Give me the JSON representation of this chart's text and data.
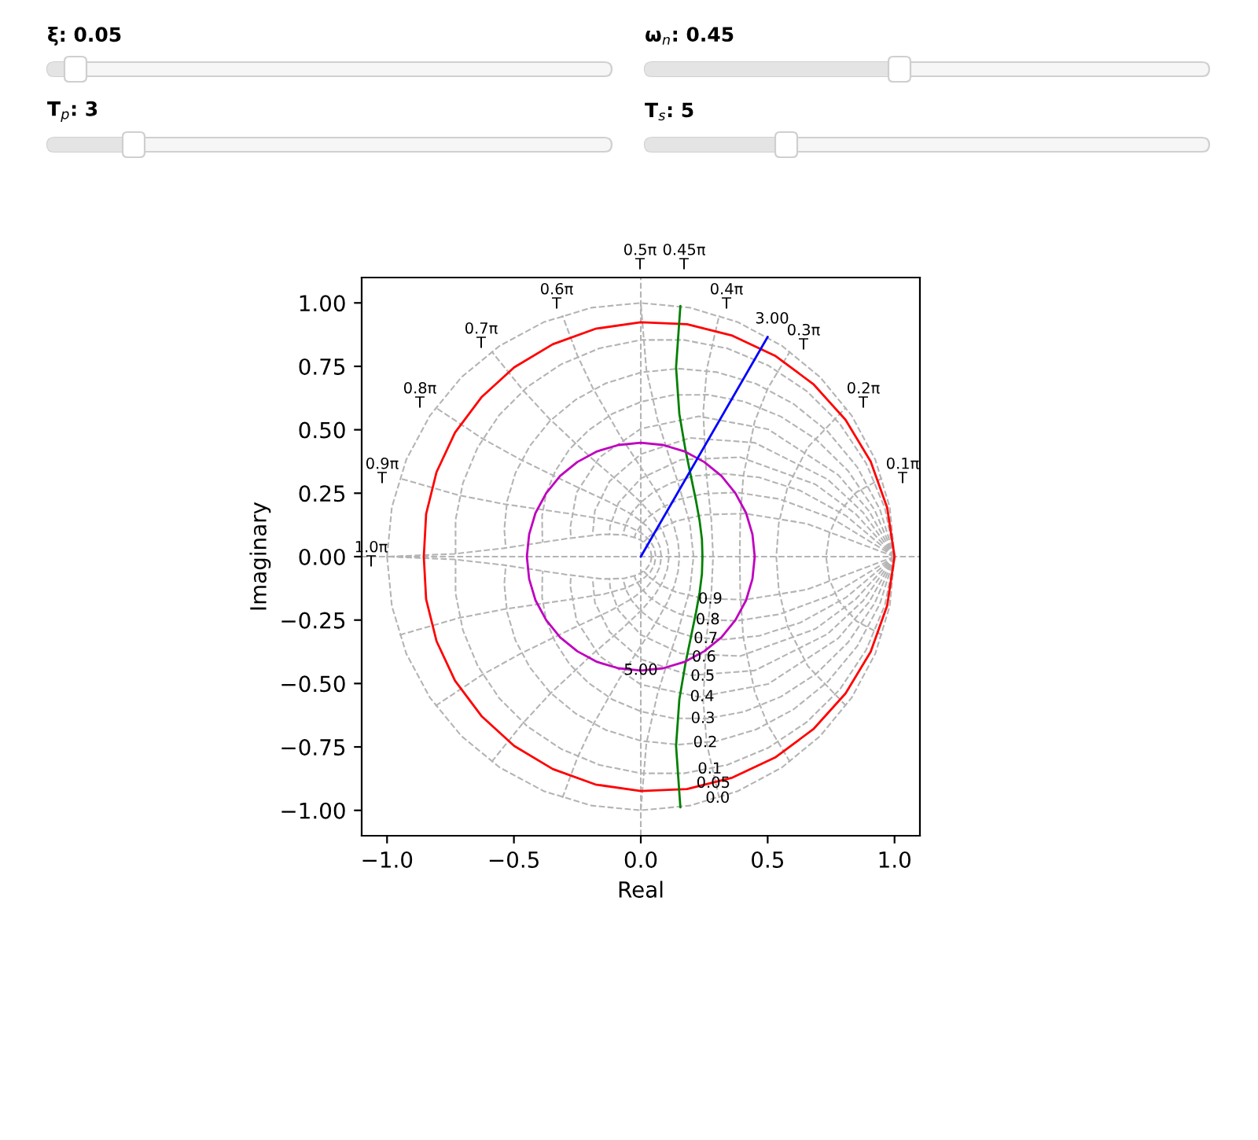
{
  "chart_data": {
    "type": "line",
    "xlabel": "Real",
    "ylabel": "Imaginary",
    "xlim": [
      -1.1,
      1.1
    ],
    "ylim": [
      -1.1,
      1.1
    ],
    "xticks": [
      {
        "value": -1.0,
        "label": "−1.0"
      },
      {
        "value": -0.5,
        "label": "−0.5"
      },
      {
        "value": 0.0,
        "label": "0.0"
      },
      {
        "value": 0.5,
        "label": "0.5"
      },
      {
        "value": 1.0,
        "label": "1.0"
      }
    ],
    "yticks": [
      {
        "value": -1.0,
        "label": "−1.00"
      },
      {
        "value": -0.75,
        "label": "−0.75"
      },
      {
        "value": -0.5,
        "label": "−0.50"
      },
      {
        "value": -0.25,
        "label": "−0.25"
      },
      {
        "value": 0.0,
        "label": "0.00"
      },
      {
        "value": 0.25,
        "label": "0.25"
      },
      {
        "value": 0.5,
        "label": "0.50"
      },
      {
        "value": 0.75,
        "label": "0.75"
      },
      {
        "value": 1.0,
        "label": "1.00"
      }
    ],
    "series": [
      {
        "color": "#b4b4b4",
        "line_style": "dashed",
        "x": [
          -1.1,
          1.1
        ],
        "values": [
          0,
          0
        ]
      },
      {
        "color": "#b4b4b4",
        "line_style": "dashed",
        "x": [
          0,
          0
        ],
        "values": [
          -1.1,
          1.1
        ]
      },
      {
        "color": "#b4b4b4",
        "line_style": "dashed",
        "x": [
          1,
          0.981,
          0.924,
          0.831,
          0.707,
          0.556,
          0.383,
          0.195,
          0,
          -0.195,
          -0.383,
          -0.556,
          -0.707,
          -0.831,
          -0.924,
          -0.981,
          -1
        ],
        "values": [
          0,
          0.195,
          0.383,
          0.556,
          0.707,
          0.831,
          0.924,
          0.981,
          1,
          0.981,
          0.924,
          0.831,
          0.707,
          0.556,
          0.383,
          0.195,
          0
        ]
      },
      {
        "color": "#b4b4b4",
        "line_style": "dashed",
        "x": [
          1,
          0.981,
          0.924,
          0.831,
          0.707,
          0.556,
          0.383,
          0.195,
          0,
          -0.195,
          -0.383,
          -0.556,
          -0.707,
          -0.831,
          -0.924,
          -0.981,
          -1
        ],
        "values": [
          0,
          -0.195,
          -0.383,
          -0.556,
          -0.707,
          -0.831,
          -0.924,
          -0.981,
          -1,
          -0.981,
          -0.924,
          -0.831,
          -0.707,
          -0.556,
          -0.383,
          -0.195,
          0
        ]
      },
      {
        "color": "#b4b4b4",
        "line_style": "dashed",
        "x": [
          1,
          0.962,
          0.888,
          0.784,
          0.653,
          0.503,
          0.34,
          0.17,
          0,
          -0.163,
          -0.314,
          -0.447,
          -0.558,
          -0.643,
          -0.701,
          -0.73,
          -0.73
        ],
        "values": [
          0,
          0.191,
          0.368,
          0.524,
          0.653,
          0.753,
          0.821,
          0.854,
          0.854,
          0.821,
          0.758,
          0.669,
          0.558,
          0.43,
          0.29,
          0.145,
          0.011
        ]
      },
      {
        "color": "#b4b4b4",
        "line_style": "dashed",
        "x": [
          1,
          0.962,
          0.888,
          0.784,
          0.653,
          0.503,
          0.34,
          0.17,
          0,
          -0.163,
          -0.314,
          -0.447,
          -0.558,
          -0.643,
          -0.701,
          -0.73,
          -0.73
        ],
        "values": [
          0,
          -0.191,
          -0.368,
          -0.524,
          -0.653,
          -0.753,
          -0.821,
          -0.854,
          -0.854,
          -0.821,
          -0.758,
          -0.669,
          -0.558,
          -0.43,
          -0.29,
          -0.145,
          -0.011
        ]
      },
      {
        "color": "#b4b4b4",
        "line_style": "dashed",
        "x": [
          1,
          0.942,
          0.853,
          0.737,
          0.602,
          0.455,
          0.301,
          0.147,
          0,
          -0.136,
          -0.256,
          -0.358,
          -0.437,
          -0.494,
          -0.527,
          -0.538,
          -0.532
        ],
        "values": [
          0,
          0.187,
          0.353,
          0.493,
          0.602,
          0.681,
          0.727,
          0.741,
          0.726,
          0.684,
          0.619,
          0.535,
          0.437,
          0.33,
          0.218,
          0.107,
          0.034
        ]
      },
      {
        "color": "#b4b4b4",
        "line_style": "dashed",
        "x": [
          1,
          0.942,
          0.853,
          0.737,
          0.602,
          0.455,
          0.301,
          0.147,
          0,
          -0.136,
          -0.256,
          -0.358,
          -0.437,
          -0.494,
          -0.527,
          -0.538,
          -0.532
        ],
        "values": [
          0,
          -0.187,
          -0.353,
          -0.493,
          -0.602,
          -0.681,
          -0.727,
          -0.741,
          -0.726,
          -0.684,
          -0.619,
          -0.535,
          -0.437,
          -0.33,
          -0.218,
          -0.107,
          -0.034
        ]
      },
      {
        "color": "#b4b4b4",
        "line_style": "dashed",
        "x": [
          1,
          0.922,
          0.817,
          0.691,
          0.552,
          0.408,
          0.264,
          0.127,
          0,
          -0.112,
          -0.206,
          -0.282,
          -0.337,
          -0.373,
          -0.389,
          -0.388,
          -0.386
        ],
        "values": [
          0,
          0.183,
          0.338,
          0.462,
          0.552,
          0.611,
          0.638,
          0.637,
          0.61,
          0.563,
          0.498,
          0.422,
          0.337,
          0.249,
          0.161,
          0.077,
          0.056
        ]
      },
      {
        "color": "#b4b4b4",
        "line_style": "dashed",
        "x": [
          1,
          0.922,
          0.817,
          0.691,
          0.552,
          0.408,
          0.264,
          0.127,
          0,
          -0.112,
          -0.206,
          -0.282,
          -0.337,
          -0.373,
          -0.389,
          -0.388,
          -0.386
        ],
        "values": [
          0,
          -0.183,
          -0.338,
          -0.462,
          -0.552,
          -0.611,
          -0.638,
          -0.637,
          -0.61,
          -0.563,
          -0.498,
          -0.422,
          -0.337,
          -0.249,
          -0.161,
          -0.077,
          -0.056
        ]
      },
      {
        "color": "#b4b4b4",
        "line_style": "dashed",
        "x": [
          1,
          0.9,
          0.778,
          0.502,
          0.229,
          0,
          -0.162,
          -0.253,
          -0.278,
          -0.275
        ],
        "values": [
          0,
          0.179,
          0.322,
          0.502,
          0.553,
          0.504,
          0.392,
          0.253,
          0.115,
          0.074
        ]
      },
      {
        "color": "#b4b4b4",
        "line_style": "dashed",
        "x": [
          1,
          0.9,
          0.778,
          0.502,
          0.229,
          0,
          -0.162,
          -0.253,
          -0.278,
          -0.275
        ],
        "values": [
          0,
          -0.179,
          -0.322,
          -0.502,
          -0.553,
          -0.504,
          -0.392,
          -0.253,
          -0.115,
          -0.074
        ]
      },
      {
        "color": "#b4b4b4",
        "line_style": "dashed",
        "x": [
          1,
          0.876,
          0.736,
          0.449,
          0.194,
          0,
          -0.123,
          -0.181,
          -0.19
        ],
        "values": [
          0,
          0.174,
          0.305,
          0.449,
          0.468,
          0.404,
          0.297,
          0.181,
          0.085
        ]
      },
      {
        "color": "#b4b4b4",
        "line_style": "dashed",
        "x": [
          1,
          0.876,
          0.736,
          0.449,
          0.194,
          0,
          -0.123,
          -0.181,
          -0.19
        ],
        "values": [
          0,
          -0.174,
          -0.305,
          -0.449,
          -0.468,
          -0.404,
          -0.297,
          -0.181,
          -0.085
        ]
      },
      {
        "color": "#b4b4b4",
        "line_style": "dashed",
        "x": [
          1,
          0.847,
          0.688,
          0.392,
          0.158,
          0,
          -0.088,
          -0.121,
          -0.123
        ],
        "values": [
          0,
          0.168,
          0.285,
          0.392,
          0.382,
          0.308,
          0.212,
          0.121,
          0.089
        ]
      },
      {
        "color": "#b4b4b4",
        "line_style": "dashed",
        "x": [
          1,
          0.847,
          0.688,
          0.392,
          0.158,
          0,
          -0.088,
          -0.121,
          -0.123
        ],
        "values": [
          0,
          -0.168,
          -0.285,
          -0.392,
          -0.382,
          -0.308,
          -0.212,
          -0.121,
          -0.089
        ]
      },
      {
        "color": "#b4b4b4",
        "line_style": "dashed",
        "x": [
          1,
          0.809,
          0.629,
          0.467,
          0.327,
          0.212,
          0.121,
          0.051,
          0,
          -0.035,
          -0.056,
          -0.067,
          -0.069
        ],
        "values": [
          0,
          0.161,
          0.26,
          0.312,
          0.327,
          0.318,
          0.291,
          0.255,
          0.214,
          0.174,
          0.135,
          0.1,
          0.087
        ]
      },
      {
        "color": "#b4b4b4",
        "line_style": "dashed",
        "x": [
          1,
          0.809,
          0.629,
          0.467,
          0.327,
          0.212,
          0.121,
          0.051,
          0,
          -0.035,
          -0.056,
          -0.067,
          -0.069
        ],
        "values": [
          0,
          -0.161,
          -0.26,
          -0.312,
          -0.327,
          -0.318,
          -0.291,
          -0.255,
          -0.214,
          -0.174,
          -0.135,
          -0.1,
          -0.087
        ]
      },
      {
        "color": "#b4b4b4",
        "line_style": "dashed",
        "x": [
          1,
          0.755,
          0.547,
          0.379,
          0.248,
          0.15,
          0.08,
          0.031,
          0,
          -0.019,
          -0.025
        ],
        "values": [
          0,
          0.15,
          0.227,
          0.253,
          0.248,
          0.225,
          0.192,
          0.157,
          0.123,
          0.093,
          0.077
        ]
      },
      {
        "color": "#b4b4b4",
        "line_style": "dashed",
        "x": [
          1,
          0.755,
          0.547,
          0.379,
          0.248,
          0.15,
          0.08,
          0.031,
          0,
          -0.019,
          -0.025
        ],
        "values": [
          0,
          -0.15,
          -0.227,
          -0.253,
          -0.248,
          -0.225,
          -0.192,
          -0.157,
          -0.123,
          -0.093,
          -0.077
        ]
      },
      {
        "color": "#b4b4b4",
        "line_style": "dashed",
        "x": [
          1,
          0.654,
          0.411,
          0.246,
          0.14,
          0.073,
          0.034,
          0.012
        ],
        "values": [
          0,
          0.13,
          0.17,
          0.165,
          0.14,
          0.11,
          0.081,
          0.058
        ]
      },
      {
        "color": "#b4b4b4",
        "line_style": "dashed",
        "x": [
          1,
          0.654,
          0.411,
          0.246,
          0.14,
          0.073,
          0.034,
          0.012
        ],
        "values": [
          0,
          -0.13,
          -0.17,
          -0.165,
          -0.14,
          -0.11,
          -0.081,
          -0.058
        ]
      },
      {
        "color": "#b4b4b4",
        "line_style": "dashed",
        "x": [
          0.951,
          0.85,
          0.781,
          0.743,
          0.73,
          0.743,
          0.781,
          0.85,
          0.951
        ],
        "values": [
          -0.309,
          -0.254,
          -0.176,
          -0.09,
          0,
          0.09,
          0.176,
          0.254,
          0.309
        ]
      },
      {
        "color": "#b4b4b4",
        "line_style": "dashed",
        "x": [
          0.809,
          0.658,
          0.579,
          0.544,
          0.534,
          0.544,
          0.579,
          0.658,
          0.809
        ],
        "values": [
          -0.588,
          -0.431,
          -0.276,
          -0.133,
          0,
          0.133,
          0.276,
          0.431,
          0.588
        ]
      },
      {
        "color": "#b4b4b4",
        "line_style": "dashed",
        "x": [
          0.588,
          0.501,
          0.449,
          0.404,
          0.392,
          0.39,
          0.392,
          0.404,
          0.449,
          0.501,
          0.588
        ],
        "values": [
          -0.809,
          -0.664,
          -0.533,
          -0.318,
          -0.148,
          0,
          0.148,
          0.318,
          0.533,
          0.664,
          0.809
        ]
      },
      {
        "color": "#b4b4b4",
        "line_style": "dashed",
        "x": [
          0.309,
          0.26,
          0.246,
          0.259,
          0.278,
          0.285,
          0.278,
          0.259,
          0.246,
          0.26,
          0.309
        ],
        "values": [
          -0.951,
          -0.738,
          -0.567,
          -0.319,
          -0.145,
          0,
          0.145,
          0.319,
          0.567,
          0.738,
          0.951
        ]
      },
      {
        "color": "#b4b4b4",
        "line_style": "dashed",
        "x": [
          0,
          0.022,
          0.065,
          0.109,
          0.146,
          0.193,
          0.208,
          0.193,
          0.146,
          0.109,
          0.065,
          0.022,
          0
        ],
        "values": [
          -1,
          -0.736,
          -0.544,
          -0.403,
          -0.295,
          -0.133,
          0,
          0.133,
          0.295,
          0.403,
          0.544,
          0.736,
          1
        ]
      },
      {
        "color": "#b4b4b4",
        "line_style": "dashed",
        "x": [
          -0.309,
          -0.25,
          -0.19,
          -0.083,
          0.001,
          0.062,
          0.104,
          0.132,
          0.147,
          0.152,
          0.147,
          0.132,
          0.104,
          0.062,
          0.001,
          -0.083,
          -0.19,
          -0.25,
          -0.309
        ],
        "values": [
          -0.951,
          -0.793,
          -0.666,
          -0.479,
          -0.351,
          -0.256,
          -0.181,
          -0.116,
          -0.057,
          0,
          0.057,
          0.116,
          0.181,
          0.256,
          0.351,
          0.479,
          0.666,
          0.793,
          0.951
        ]
      },
      {
        "color": "#b4b4b4",
        "line_style": "dashed",
        "x": [
          -0.588,
          -0.466,
          -0.36,
          -0.192,
          -0.075,
          0.003,
          0.055,
          0.087,
          0.105,
          0.111,
          0.105,
          0.087,
          0.055,
          0.003,
          -0.075,
          -0.192,
          -0.36,
          -0.466,
          -0.588
        ],
        "values": [
          -0.809,
          -0.658,
          -0.543,
          -0.386,
          -0.285,
          -0.211,
          -0.151,
          -0.098,
          -0.048,
          0,
          0.048,
          0.098,
          0.151,
          0.211,
          0.285,
          0.386,
          0.543,
          0.658,
          0.809
        ]
      },
      {
        "color": "#b4b4b4",
        "line_style": "dashed",
        "x": [
          -0.809,
          -0.627,
          -0.477,
          -0.261,
          -0.123,
          -0.035,
          0.022,
          0.056,
          0.075,
          0.081,
          0.075,
          0.056,
          0.022,
          -0.035,
          -0.123,
          -0.261,
          -0.477,
          -0.627,
          -0.809
        ],
        "values": [
          -0.588,
          -0.467,
          -0.384,
          -0.279,
          -0.215,
          -0.166,
          -0.122,
          -0.081,
          -0.04,
          0,
          0.04,
          0.081,
          0.122,
          0.166,
          0.215,
          0.279,
          0.384,
          0.467,
          0.588
        ]
      },
      {
        "color": "#b4b4b4",
        "line_style": "dashed",
        "x": [
          -0.951,
          -0.718,
          -0.537,
          -0.293,
          -0.146,
          -0.056,
          0,
          0.035,
          0.053,
          0.059,
          0.053,
          0.035,
          0,
          -0.056,
          -0.146,
          -0.293,
          -0.537,
          -0.718,
          -0.951
        ],
        "values": [
          -0.309,
          -0.242,
          -0.207,
          -0.171,
          -0.148,
          -0.123,
          -0.095,
          -0.065,
          -0.033,
          0,
          0.033,
          0.065,
          0.095,
          0.123,
          0.148,
          0.171,
          0.207,
          0.242,
          0.309
        ]
      },
      {
        "color": "#b4b4b4",
        "line_style": "dashed",
        "x": [
          0.043,
          0.038,
          0.02,
          -0.013,
          -0.066,
          -0.151,
          -0.292,
          -0.541,
          -0.735,
          -1
        ],
        "values": [
          0,
          0.026,
          0.051,
          0.072,
          0.086,
          0.088,
          0.071,
          0.033,
          0.011,
          0
        ]
      },
      {
        "color": "#b4b4b4",
        "line_style": "dashed",
        "x": [
          0.043,
          0.038,
          0.02,
          -0.013,
          -0.066,
          -0.151,
          -0.292,
          -0.541,
          -0.735,
          -1
        ],
        "values": [
          0,
          -0.026,
          -0.051,
          -0.072,
          -0.086,
          -0.088,
          -0.071,
          -0.033,
          -0.011,
          0
        ]
      },
      {
        "color": "#ff0000",
        "line_style": "solid",
        "x": [
          1,
          0.971,
          0.906,
          0.807,
          0.68,
          0.529,
          0.361,
          0.182,
          0,
          -0.179,
          -0.347,
          -0.499,
          -0.628,
          -0.732,
          -0.805,
          -0.846,
          -0.855
        ],
        "values": [
          0,
          0.193,
          0.375,
          0.539,
          0.68,
          0.792,
          0.871,
          0.916,
          0.924,
          0.898,
          0.837,
          0.746,
          0.628,
          0.489,
          0.333,
          0.168,
          0.003
        ]
      },
      {
        "color": "#ff0000",
        "line_style": "solid",
        "x": [
          1,
          0.971,
          0.906,
          0.807,
          0.68,
          0.529,
          0.361,
          0.182,
          0,
          -0.179,
          -0.347,
          -0.499,
          -0.628,
          -0.732,
          -0.805,
          -0.846,
          -0.855
        ],
        "values": [
          0,
          -0.193,
          -0.375,
          -0.539,
          -0.68,
          -0.792,
          -0.871,
          -0.916,
          -0.924,
          -0.898,
          -0.837,
          -0.746,
          -0.628,
          -0.489,
          -0.333,
          -0.168,
          -0.003
        ]
      },
      {
        "color": "#008000",
        "line_style": "solid",
        "x": [
          0.156,
          0.139,
          0.152,
          0.176,
          0.199,
          0.218,
          0.232,
          0.241,
          0.243,
          0.241,
          0.232,
          0.218,
          0.199,
          0.176,
          0.152,
          0.139,
          0.156
        ],
        "values": [
          -0.988,
          -0.746,
          -0.562,
          -0.421,
          -0.31,
          -0.218,
          -0.14,
          -0.068,
          0,
          0.068,
          0.14,
          0.218,
          0.31,
          0.421,
          0.562,
          0.746,
          0.988
        ]
      },
      {
        "color": "#bf00bf",
        "line_style": "solid",
        "x": [
          0.449,
          0.44,
          0.415,
          0.373,
          0.318,
          0.25,
          0.172,
          0.088,
          0,
          -0.088,
          -0.172,
          -0.25,
          -0.318,
          -0.373,
          -0.415,
          -0.44,
          -0.449
        ],
        "values": [
          0,
          0.088,
          0.172,
          0.25,
          0.318,
          0.373,
          0.415,
          0.44,
          0.449,
          0.44,
          0.415,
          0.373,
          0.318,
          0.25,
          0.172,
          0.088,
          0
        ]
      },
      {
        "color": "#bf00bf",
        "line_style": "solid",
        "x": [
          0.449,
          0.44,
          0.415,
          0.373,
          0.318,
          0.25,
          0.172,
          0.088,
          0,
          -0.088,
          -0.172,
          -0.25,
          -0.318,
          -0.373,
          -0.415,
          -0.44,
          -0.449
        ],
        "values": [
          0,
          -0.088,
          -0.172,
          -0.25,
          -0.318,
          -0.373,
          -0.415,
          -0.44,
          -0.449,
          -0.44,
          -0.415,
          -0.373,
          -0.318,
          -0.25,
          -0.172,
          -0.088,
          0
        ]
      },
      {
        "color": "#0000ff",
        "line_style": "solid",
        "x": [
          0,
          0.5
        ],
        "values": [
          0,
          0.866
        ]
      }
    ],
    "annotations": [
      "ξ: 0.05",
      "ω$_{n}$: 0.45",
      "T$_{p}$: 3",
      "T$_{s}$: 5",
      "3.00",
      "0.1π\nT",
      "0.2π\nT",
      "0.3π\nT",
      "0.4π\nT",
      "0.45π\nT",
      "0.5π\nT",
      "0.6π\nT",
      "0.7π\nT",
      "0.8π\nT",
      "0.9π\nT",
      "1.0π\nT",
      {
        "text": "5.00",
        "x": 0,
        "y": -0.449
      },
      {
        "text": "0.0",
        "x": 0.303,
        "y": -0.953
      },
      {
        "text": "0.05",
        "x": 0.286,
        "y": -0.894
      },
      {
        "text": "0.1",
        "x": 0.272,
        "y": -0.838
      },
      {
        "text": "0.2",
        "x": 0.254,
        "y": -0.734
      },
      {
        "text": "0.3",
        "x": 0.245,
        "y": -0.639
      },
      {
        "text": "0.4",
        "x": 0.242,
        "y": -0.553
      },
      {
        "text": "0.5",
        "x": 0.244,
        "y": -0.472
      },
      {
        "text": "0.6",
        "x": 0.249,
        "y": -0.397
      },
      {
        "text": "0.7",
        "x": 0.256,
        "y": -0.324
      },
      {
        "text": "0.8",
        "x": 0.264,
        "y": -0.25
      },
      {
        "text": "0.9",
        "x": 0.274,
        "y": -0.168
      }
    ]
  }
}
